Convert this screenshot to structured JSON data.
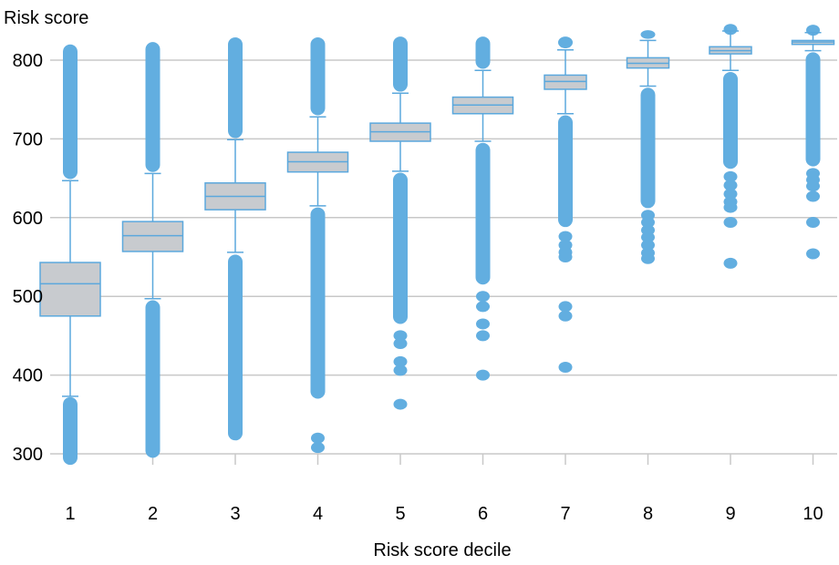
{
  "chart_data": {
    "type": "box",
    "ylabel": "Risk score",
    "xlabel": "Risk score decile",
    "ylim": [
      300,
      800
    ],
    "yticks": [
      300,
      400,
      500,
      600,
      700,
      800
    ],
    "grid": true,
    "colors": {
      "accent": "#62aee0",
      "box_fill": "#c8cbcf",
      "grid": "#c8c8c8"
    },
    "categories": [
      "1",
      "2",
      "3",
      "4",
      "5",
      "6",
      "7",
      "8",
      "9",
      "10"
    ],
    "boxes": [
      {
        "decile": "1",
        "q1": 475,
        "median": 516,
        "q3": 543,
        "whisker_low": 373,
        "whisker_high": 647,
        "outlier_bands": [
          [
            286,
            372
          ],
          [
            649,
            820
          ]
        ],
        "isolated_outliers": []
      },
      {
        "decile": "2",
        "q1": 557,
        "median": 577,
        "q3": 595,
        "whisker_low": 497,
        "whisker_high": 656,
        "outlier_bands": [
          [
            295,
            495
          ],
          [
            658,
            823
          ]
        ],
        "isolated_outliers": []
      },
      {
        "decile": "3",
        "q1": 610,
        "median": 627,
        "q3": 644,
        "whisker_low": 556,
        "whisker_high": 699,
        "outlier_bands": [
          [
            317,
            553
          ],
          [
            701,
            829
          ]
        ],
        "isolated_outliers": []
      },
      {
        "decile": "4",
        "q1": 658,
        "median": 671,
        "q3": 683,
        "whisker_low": 615,
        "whisker_high": 728,
        "outlier_bands": [
          [
            370,
            613
          ],
          [
            730,
            829
          ]
        ],
        "isolated_outliers": [
          308,
          320,
          392,
          400
        ]
      },
      {
        "decile": "5",
        "q1": 697,
        "median": 709,
        "q3": 720,
        "whisker_low": 659,
        "whisker_high": 758,
        "outlier_bands": [
          [
            465,
            657
          ],
          [
            760,
            830
          ]
        ],
        "isolated_outliers": [
          363,
          406,
          417,
          440,
          450
        ]
      },
      {
        "decile": "6",
        "q1": 732,
        "median": 743,
        "q3": 753,
        "whisker_low": 697,
        "whisker_high": 787,
        "outlier_bands": [
          [
            515,
            695
          ],
          [
            789,
            830
          ]
        ],
        "isolated_outliers": [
          400,
          450,
          465,
          487,
          500
        ]
      },
      {
        "decile": "7",
        "q1": 763,
        "median": 773,
        "q3": 781,
        "whisker_low": 732,
        "whisker_high": 813,
        "outlier_bands": [
          [
            588,
            730
          ],
          [
            815,
            830
          ]
        ],
        "isolated_outliers": [
          410,
          475,
          487,
          550,
          556,
          565,
          576
        ]
      },
      {
        "decile": "8",
        "q1": 790,
        "median": 796,
        "q3": 803,
        "whisker_low": 767,
        "whisker_high": 825,
        "outlier_bands": [
          [
            612,
            765
          ],
          [
            827,
            838
          ]
        ],
        "isolated_outliers": [
          548,
          555,
          565,
          575,
          584,
          594,
          603
        ]
      },
      {
        "decile": "9",
        "q1": 808,
        "median": 812,
        "q3": 817,
        "whisker_low": 787,
        "whisker_high": 837,
        "outlier_bands": [
          [
            662,
            785
          ]
        ],
        "isolated_outliers": [
          542,
          594,
          613,
          620,
          630,
          641,
          652,
          839
        ]
      },
      {
        "decile": "10",
        "q1": 820,
        "median": 823,
        "q3": 825,
        "whisker_low": 812,
        "whisker_high": 835,
        "outlier_bands": [
          [
            665,
            810
          ]
        ],
        "isolated_outliers": [
          554,
          594,
          627,
          640,
          648,
          656,
          838
        ]
      }
    ]
  }
}
